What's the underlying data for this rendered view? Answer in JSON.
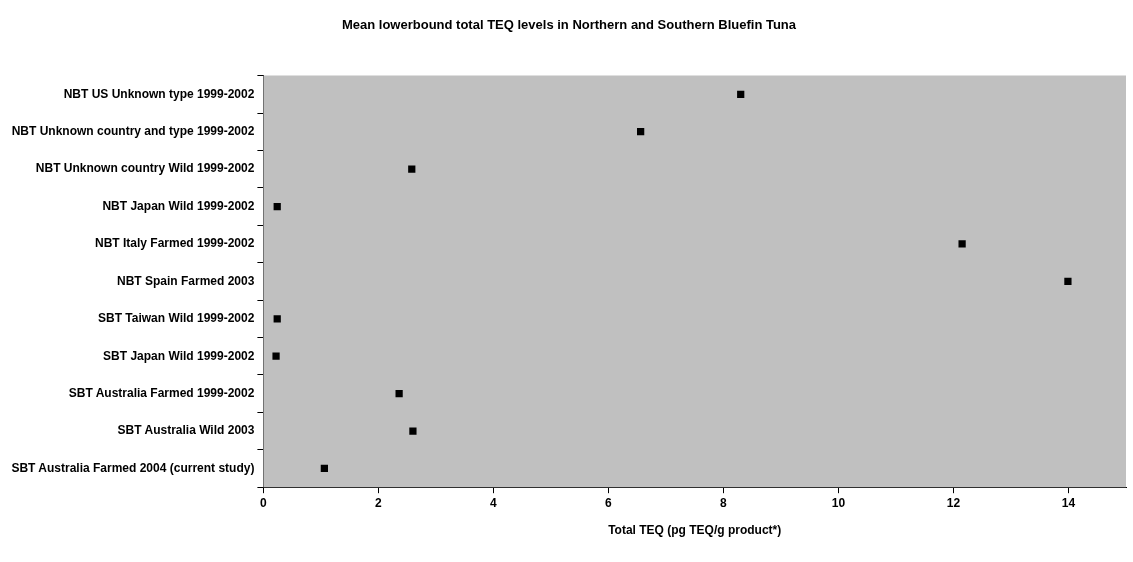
{
  "chart_data": {
    "type": "scatter",
    "orientation": "horizontal",
    "title": "Mean lowerbound total TEQ levels in Northern and Southern Bluefin Tuna",
    "xlabel": "Total TEQ (pg TEQ/g product*)",
    "categories": [
      "NBT US Unknown type 1999-2002",
      "NBT Unknown country and type 1999-2002",
      "NBT Unknown country Wild 1999-2002",
      "NBT Japan Wild 1999-2002",
      "NBT Italy Farmed 1999-2002",
      "NBT Spain Farmed 2003",
      "SBT Taiwan Wild 1999-2002",
      "SBT Japan Wild 1999-2002",
      "SBT Australia Farmed 1999-2002",
      "SBT Australia Wild 2003",
      "SBT Australia Farmed 2004 (current study)"
    ],
    "values": [
      8.3,
      6.56,
      2.58,
      0.24,
      12.15,
      13.99,
      0.24,
      0.22,
      2.36,
      2.6,
      1.06
    ],
    "color": "#000000",
    "marker": "square",
    "xlim": [
      0,
      15
    ],
    "xticks": [
      0,
      2,
      4,
      6,
      8,
      10,
      12,
      14
    ],
    "grid": false,
    "legend": false
  }
}
